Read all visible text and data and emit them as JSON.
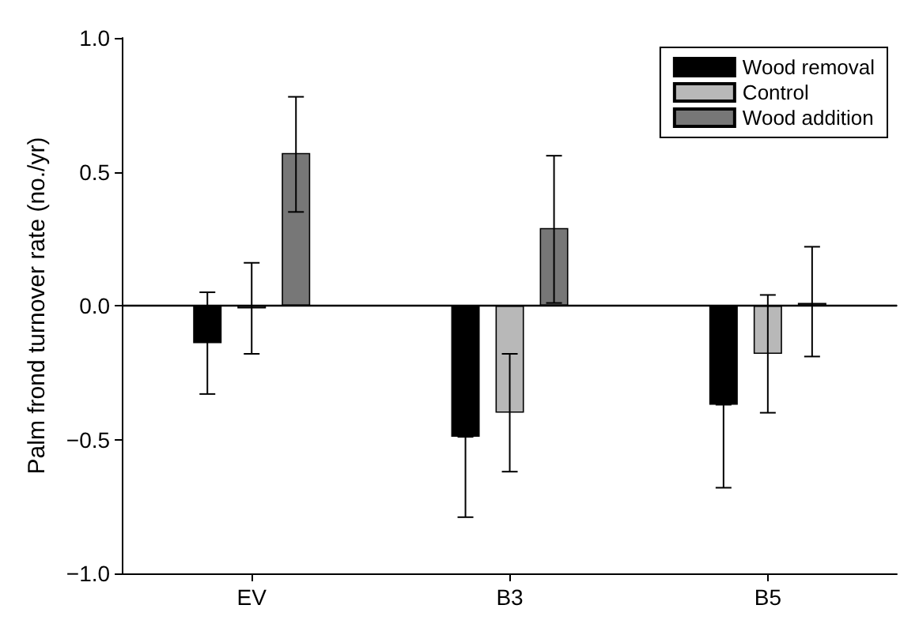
{
  "chart_data": {
    "type": "bar",
    "ylabel": "Palm frond turnover rate (no./yr)",
    "categories": [
      "EV",
      "B3",
      "B5"
    ],
    "series": [
      {
        "name": "Wood removal",
        "color": "#000000",
        "values": [
          -0.14,
          -0.49,
          -0.37
        ],
        "errors": [
          [
            -0.33,
            0.05
          ],
          [
            -0.79,
            -0.49
          ],
          [
            -0.68,
            -0.37
          ]
        ]
      },
      {
        "name": "Control",
        "color": "#b8b8b8",
        "values": [
          -0.01,
          -0.4,
          -0.18
        ],
        "errors": [
          [
            -0.18,
            0.16
          ],
          [
            -0.62,
            -0.18
          ],
          [
            -0.4,
            0.04
          ]
        ]
      },
      {
        "name": "Wood addition",
        "color": "#777777",
        "values": [
          0.57,
          0.29,
          0.01
        ],
        "errors": [
          [
            0.35,
            0.78
          ],
          [
            0.01,
            0.56
          ],
          [
            -0.19,
            0.22
          ]
        ]
      }
    ],
    "ylim": [
      -1.0,
      1.0
    ],
    "yticks": [
      {
        "value": -1,
        "label": "−1.0"
      },
      {
        "value": -0.5,
        "label": "−0.5"
      },
      {
        "value": 0,
        "label": "0.0"
      },
      {
        "value": 0.5,
        "label": "0.5"
      },
      {
        "value": 1,
        "label": "1.0"
      }
    ],
    "ref_lines": [
      {
        "axis": "y",
        "value": 0,
        "color": "#000000"
      }
    ],
    "grid": false,
    "legend": "top right"
  }
}
